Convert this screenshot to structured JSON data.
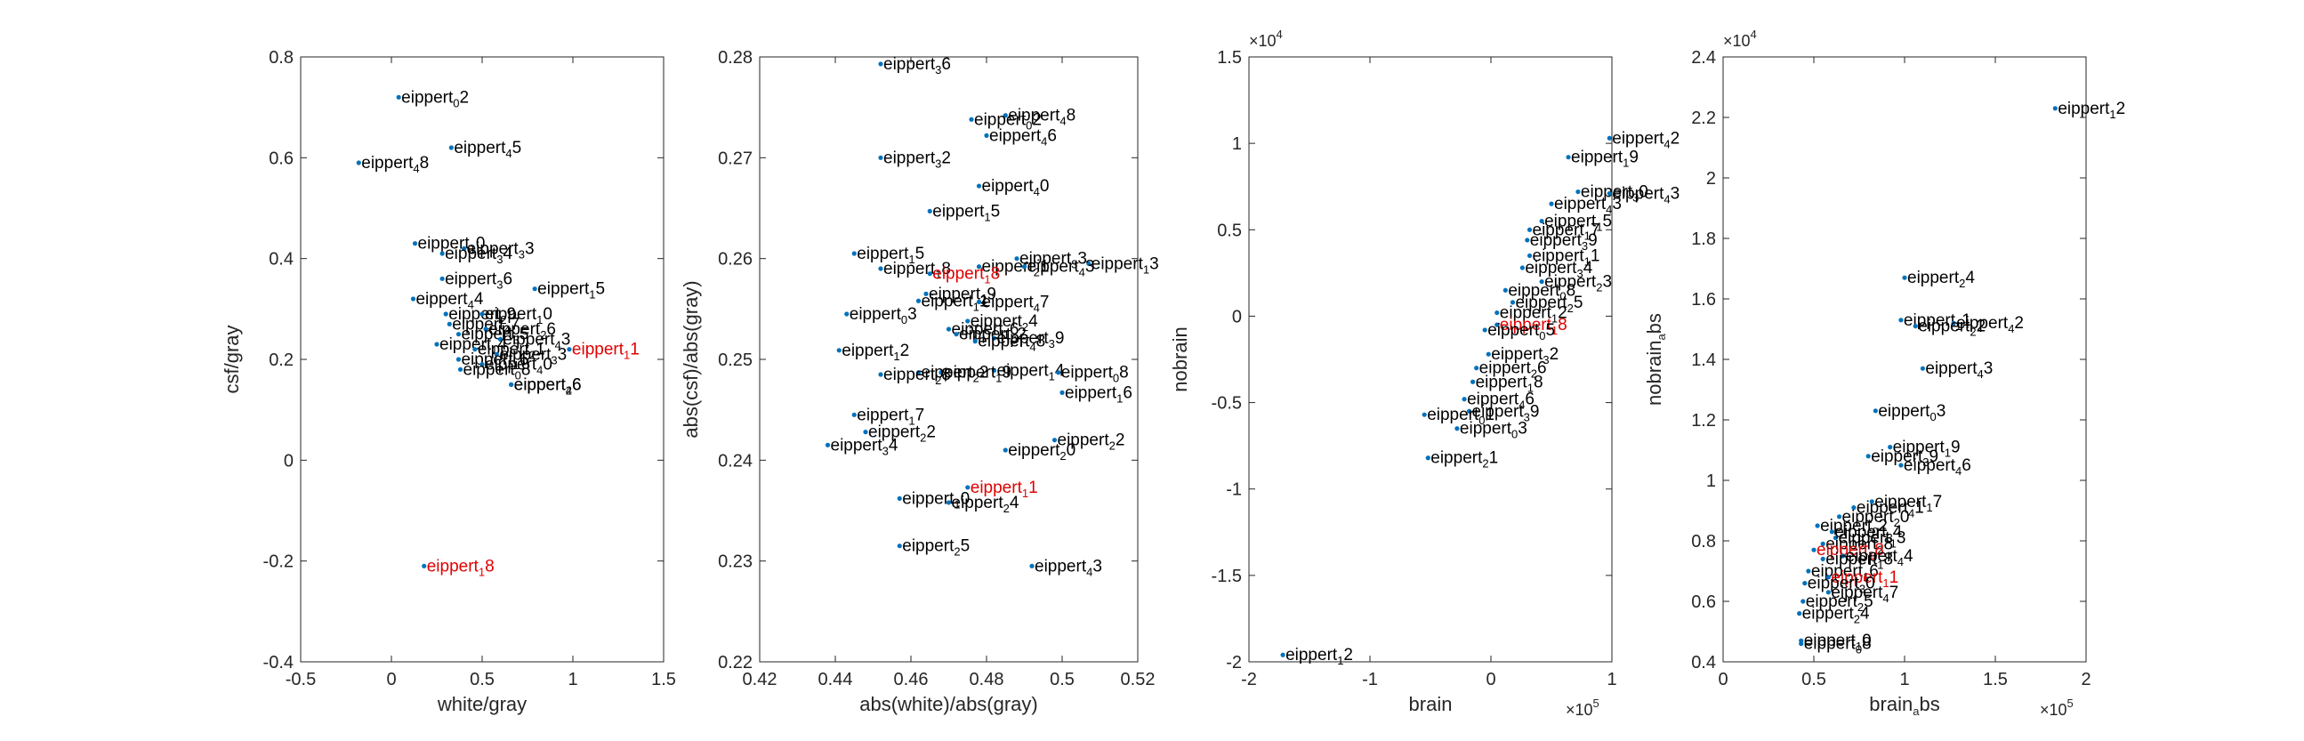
{
  "colors": {
    "marker": "#0072bd",
    "label": "#000000",
    "highlight": "#e00000",
    "axis": "#262626",
    "background": "#ffffff"
  },
  "chart_data": [
    {
      "type": "scatter",
      "xlabel": "white/gray",
      "ylabel": "csf/gray",
      "xlim": [
        -0.5,
        1.5
      ],
      "ylim": [
        -0.4,
        0.8
      ],
      "xticks": [
        "-0.5",
        "0",
        "0.5",
        "1",
        "1.5"
      ],
      "yticks": [
        "-0.4",
        "-0.2",
        "0",
        "0.2",
        "0.4",
        "0.6",
        "0.8"
      ],
      "points": [
        {
          "x": 0.04,
          "y": 0.72,
          "label": "eippert_0 2"
        },
        {
          "x": 0.33,
          "y": 0.62,
          "label": "eippert_4 5"
        },
        {
          "x": -0.18,
          "y": 0.59,
          "label": "eippert_4 8"
        },
        {
          "x": 0.13,
          "y": 0.43,
          "label": "eippert_1 0"
        },
        {
          "x": 0.4,
          "y": 0.42,
          "label": "eippert_3 3"
        },
        {
          "x": 0.28,
          "y": 0.41,
          "label": "eippert_3 4"
        },
        {
          "x": 0.28,
          "y": 0.36,
          "label": "eippert_3 6"
        },
        {
          "x": 0.79,
          "y": 0.34,
          "label": "eippert_1 5"
        },
        {
          "x": 0.12,
          "y": 0.32,
          "label": "eippert_4 4"
        },
        {
          "x": 0.3,
          "y": 0.29,
          "label": "eippert_2 9"
        },
        {
          "x": 0.5,
          "y": 0.29,
          "label": "eippert_1 0"
        },
        {
          "x": 0.32,
          "y": 0.27,
          "label": "eippert_4 7"
        },
        {
          "x": 0.52,
          "y": 0.26,
          "label": "eippert_2 6"
        },
        {
          "x": 0.37,
          "y": 0.25,
          "label": "eippert_3 5"
        },
        {
          "x": 0.6,
          "y": 0.24,
          "label": "eippert_4 3"
        },
        {
          "x": 0.25,
          "y": 0.23,
          "label": "eippert_1 4"
        },
        {
          "x": 0.46,
          "y": 0.22,
          "label": "eippert_2 1"
        },
        {
          "x": 0.58,
          "y": 0.21,
          "label": "eippert_3 3"
        },
        {
          "x": 0.37,
          "y": 0.2,
          "label": "eippert_1 6"
        },
        {
          "x": 0.5,
          "y": 0.19,
          "label": "eippert_4 0"
        },
        {
          "x": 0.38,
          "y": 0.18,
          "label": "eippert_0 8"
        },
        {
          "x": 0.66,
          "y": 0.15,
          "label": "eippert_2 6"
        },
        {
          "x": 0.66,
          "y": 0.15,
          "label": "eippert_4 6"
        },
        {
          "x": 0.98,
          "y": 0.22,
          "label": "eippert_1 1",
          "highlight": true
        },
        {
          "x": 0.18,
          "y": -0.21,
          "label": "eippert_1 8",
          "highlight": true
        }
      ]
    },
    {
      "type": "scatter",
      "xlabel": "abs(white)/abs(gray)",
      "ylabel": "abs(csf)/abs(gray)",
      "xlim": [
        0.42,
        0.52
      ],
      "ylim": [
        0.22,
        0.28
      ],
      "xticks": [
        "0.42",
        "0.44",
        "0.46",
        "0.48",
        "0.5",
        "0.52"
      ],
      "yticks": [
        "0.22",
        "0.23",
        "0.24",
        "0.25",
        "0.26",
        "0.27",
        "0.28"
      ],
      "points": [
        {
          "x": 0.452,
          "y": 0.2793,
          "label": "eippert_3 6"
        },
        {
          "x": 0.485,
          "y": 0.2742,
          "label": "eippert_4 8"
        },
        {
          "x": 0.476,
          "y": 0.2738,
          "label": "eippert_0 2"
        },
        {
          "x": 0.48,
          "y": 0.2722,
          "label": "eippert_4 6"
        },
        {
          "x": 0.452,
          "y": 0.27,
          "label": "eippert_3 2"
        },
        {
          "x": 0.478,
          "y": 0.2672,
          "label": "eippert_4 0"
        },
        {
          "x": 0.465,
          "y": 0.2647,
          "label": "eippert_1 5"
        },
        {
          "x": 0.445,
          "y": 0.2605,
          "label": "eippert_1 5"
        },
        {
          "x": 0.488,
          "y": 0.26,
          "label": "eippert_3 3"
        },
        {
          "x": 0.507,
          "y": 0.2595,
          "label": "eippert_1 3"
        },
        {
          "x": 0.478,
          "y": 0.2592,
          "label": "eippert_2 1"
        },
        {
          "x": 0.49,
          "y": 0.2592,
          "label": "eippert_4 3"
        },
        {
          "x": 0.452,
          "y": 0.259,
          "label": "eippert_1 8"
        },
        {
          "x": 0.465,
          "y": 0.2585,
          "label": "eippert_1 8",
          "highlight": true
        },
        {
          "x": 0.464,
          "y": 0.2565,
          "label": "eippert_2 9"
        },
        {
          "x": 0.478,
          "y": 0.2557,
          "label": "eippert_4 7"
        },
        {
          "x": 0.462,
          "y": 0.2558,
          "label": "eippert_1 1"
        },
        {
          "x": 0.443,
          "y": 0.2545,
          "label": "eippert_0 3"
        },
        {
          "x": 0.475,
          "y": 0.2538,
          "label": "eippert_2 4"
        },
        {
          "x": 0.47,
          "y": 0.253,
          "label": "eippert_1 6"
        },
        {
          "x": 0.472,
          "y": 0.2525,
          "label": "eippert_0 2"
        },
        {
          "x": 0.482,
          "y": 0.2521,
          "label": "eippert_3 9"
        },
        {
          "x": 0.477,
          "y": 0.2518,
          "label": "eippert_4 8"
        },
        {
          "x": 0.441,
          "y": 0.2509,
          "label": "eippert_1 2"
        },
        {
          "x": 0.482,
          "y": 0.2489,
          "label": "eippert_1 4"
        },
        {
          "x": 0.499,
          "y": 0.2487,
          "label": "eippert_0 8"
        },
        {
          "x": 0.468,
          "y": 0.2487,
          "label": "eippert_1 9"
        },
        {
          "x": 0.462,
          "y": 0.2487,
          "label": "eippert_2 2"
        },
        {
          "x": 0.452,
          "y": 0.2485,
          "label": "eippert_2 8"
        },
        {
          "x": 0.5,
          "y": 0.2467,
          "label": "eippert_1 6"
        },
        {
          "x": 0.445,
          "y": 0.2445,
          "label": "eippert_1 7"
        },
        {
          "x": 0.448,
          "y": 0.2428,
          "label": "eippert_2 2"
        },
        {
          "x": 0.438,
          "y": 0.2415,
          "label": "eippert_3 4"
        },
        {
          "x": 0.498,
          "y": 0.242,
          "label": "eippert_2 2"
        },
        {
          "x": 0.485,
          "y": 0.241,
          "label": "eippert_2 0"
        },
        {
          "x": 0.475,
          "y": 0.2373,
          "label": "eippert_1 1",
          "highlight": true
        },
        {
          "x": 0.457,
          "y": 0.2362,
          "label": "eippert_1 0"
        },
        {
          "x": 0.47,
          "y": 0.2358,
          "label": "eippert_2 4"
        },
        {
          "x": 0.457,
          "y": 0.2315,
          "label": "eippert_2 5"
        },
        {
          "x": 0.492,
          "y": 0.2295,
          "label": "eippert_4 3"
        }
      ]
    },
    {
      "type": "scatter",
      "xlabel": "brain",
      "ylabel": "nobrain",
      "x_exponent": "10^5",
      "y_exponent": "10^4",
      "xlim": [
        -2,
        1
      ],
      "ylim": [
        -2,
        1.5
      ],
      "xticks": [
        "-2",
        "-1",
        "0",
        "1"
      ],
      "yticks": [
        "-2",
        "-1.5",
        "-1",
        "-0.5",
        "0",
        "0.5",
        "1",
        "1.5"
      ],
      "points": [
        {
          "x": -1.72,
          "y": -1.96,
          "label": "eippert_1 2"
        },
        {
          "x": 0.98,
          "y": 1.03,
          "label": "eippert_4 2"
        },
        {
          "x": 0.64,
          "y": 0.92,
          "label": "eippert_1 9"
        },
        {
          "x": 0.72,
          "y": 0.72,
          "label": "eippert_3 0"
        },
        {
          "x": 0.98,
          "y": 0.71,
          "label": "eippert_4 3"
        },
        {
          "x": 0.5,
          "y": 0.65,
          "label": "eippert_4 3"
        },
        {
          "x": 0.42,
          "y": 0.55,
          "label": "eippert_1 5"
        },
        {
          "x": 0.32,
          "y": 0.5,
          "label": "eippert_1 7"
        },
        {
          "x": 0.3,
          "y": 0.44,
          "label": "eippert_3 9"
        },
        {
          "x": 0.32,
          "y": 0.35,
          "label": "eippert_1 1"
        },
        {
          "x": 0.26,
          "y": 0.28,
          "label": "eippert_3 4"
        },
        {
          "x": 0.42,
          "y": 0.2,
          "label": "eippert_2 3"
        },
        {
          "x": 0.12,
          "y": 0.15,
          "label": "eippert_0 8"
        },
        {
          "x": 0.18,
          "y": 0.08,
          "label": "eippert_2 5"
        },
        {
          "x": 0.05,
          "y": 0.02,
          "label": "eippert_1 2"
        },
        {
          "x": 0.05,
          "y": -0.05,
          "label": "eippert_1 8",
          "highlight": true
        },
        {
          "x": -0.05,
          "y": -0.08,
          "label": "eippert_0 5"
        },
        {
          "x": -0.02,
          "y": -0.22,
          "label": "eippert_3 2"
        },
        {
          "x": -0.12,
          "y": -0.3,
          "label": "eippert_2 6"
        },
        {
          "x": -0.15,
          "y": -0.38,
          "label": "eippert_1 8"
        },
        {
          "x": -0.22,
          "y": -0.48,
          "label": "eippert_4 6"
        },
        {
          "x": -0.18,
          "y": -0.55,
          "label": "eippert_3 9"
        },
        {
          "x": -0.28,
          "y": -0.65,
          "label": "eippert_0 3"
        },
        {
          "x": -0.55,
          "y": -0.57,
          "label": "eippert_0 1"
        },
        {
          "x": -0.52,
          "y": -0.82,
          "label": "eippert_2 1"
        }
      ]
    },
    {
      "type": "scatter",
      "xlabel": "brain_a bs",
      "ylabel": "nobrain_a bs",
      "x_exponent": "10^5",
      "y_exponent": "10^4",
      "xlim": [
        0,
        2
      ],
      "ylim": [
        0.4,
        2.4
      ],
      "xticks": [
        "0",
        "0.5",
        "1",
        "1.5",
        "2"
      ],
      "yticks": [
        "0.4",
        "0.6",
        "0.8",
        "1",
        "1.2",
        "1.4",
        "1.6",
        "1.8",
        "2",
        "2.2",
        "2.4"
      ],
      "points": [
        {
          "x": 1.83,
          "y": 2.23,
          "label": "eippert_1 2"
        },
        {
          "x": 1.0,
          "y": 1.67,
          "label": "eippert_2 4"
        },
        {
          "x": 0.98,
          "y": 1.53,
          "label": "eippert_1 1"
        },
        {
          "x": 1.27,
          "y": 1.52,
          "label": "eippert_4 2"
        },
        {
          "x": 1.06,
          "y": 1.51,
          "label": "eippert_2 2"
        },
        {
          "x": 1.1,
          "y": 1.37,
          "label": "eippert_4 3"
        },
        {
          "x": 0.84,
          "y": 1.23,
          "label": "eippert_0 3"
        },
        {
          "x": 0.92,
          "y": 1.11,
          "label": "eippert_1 9"
        },
        {
          "x": 0.8,
          "y": 1.08,
          "label": "eippert_3 9"
        },
        {
          "x": 0.98,
          "y": 1.05,
          "label": "eippert_4 6"
        },
        {
          "x": 0.82,
          "y": 0.93,
          "label": "eippert_1 7"
        },
        {
          "x": 0.72,
          "y": 0.91,
          "label": "eippert_4 1"
        },
        {
          "x": 0.64,
          "y": 0.88,
          "label": "eippert_2 0"
        },
        {
          "x": 0.52,
          "y": 0.85,
          "label": "eippert_0 2"
        },
        {
          "x": 0.6,
          "y": 0.83,
          "label": "eippert_3 4"
        },
        {
          "x": 0.62,
          "y": 0.81,
          "label": "eippert_1 3"
        },
        {
          "x": 0.55,
          "y": 0.79,
          "label": "eippert_2 8"
        },
        {
          "x": 0.5,
          "y": 0.77,
          "label": "eippert_1 8",
          "highlight": true
        },
        {
          "x": 0.66,
          "y": 0.75,
          "label": "eippert_4 4"
        },
        {
          "x": 0.55,
          "y": 0.74,
          "label": "eippert_1 8"
        },
        {
          "x": 0.47,
          "y": 0.7,
          "label": "eippert_1 6"
        },
        {
          "x": 0.58,
          "y": 0.68,
          "label": "eippert_1 1",
          "highlight": true
        },
        {
          "x": 0.45,
          "y": 0.66,
          "label": "eippert_3 0"
        },
        {
          "x": 0.58,
          "y": 0.63,
          "label": "eippert_4 7"
        },
        {
          "x": 0.44,
          "y": 0.6,
          "label": "eippert_2 5"
        },
        {
          "x": 0.42,
          "y": 0.56,
          "label": "eippert_2 4"
        },
        {
          "x": 0.43,
          "y": 0.47,
          "label": "eippert_1 0"
        },
        {
          "x": 0.43,
          "y": 0.46,
          "label": "eippert_0 8"
        }
      ]
    }
  ]
}
